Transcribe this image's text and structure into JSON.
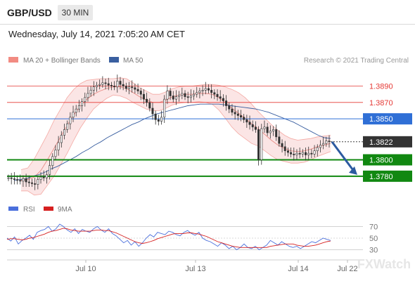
{
  "header": {
    "symbol": "GBP/USD",
    "timeframe": "30 MIN",
    "datetime": "Wednesday, July 14, 2021 7:05:20 AM CET"
  },
  "legend": {
    "bb_label": "MA 20 + Bollinger Bands",
    "ma50_label": "MA 50",
    "credit": "Research © 2021 Trading Central",
    "bb_color": "#f28b82",
    "ma50_color": "#3a5fa0"
  },
  "rsi_legend": {
    "rsi_label": "RSI",
    "ma_label": "9MA",
    "rsi_color": "#4a6fdc",
    "ma_color": "#d62020"
  },
  "chart_data": [
    {
      "type": "line",
      "title": "",
      "ylim": [
        1.3755,
        1.3905
      ],
      "current_price": 1.3822,
      "levels": [
        {
          "value": 1.389,
          "label": "1.3890",
          "kind": "resistance",
          "color": "#e53935"
        },
        {
          "value": 1.387,
          "label": "1.3870",
          "kind": "resistance",
          "color": "#e53935"
        },
        {
          "value": 1.385,
          "label": "1.3850",
          "kind": "pivot",
          "color": "#2f6fd6"
        },
        {
          "value": 1.3822,
          "label": "1.3822",
          "kind": "current",
          "color": "#222222"
        },
        {
          "value": 1.38,
          "label": "1.3800",
          "kind": "support",
          "color": "#118811"
        },
        {
          "value": 1.378,
          "label": "1.3780",
          "kind": "support",
          "color": "#118811"
        }
      ],
      "x_tick_labels": [
        "Jul 10",
        "Jul 13",
        "Jul 14",
        "Jul 22"
      ],
      "close_series": [
        1.3778,
        1.3777,
        1.3776,
        1.3775,
        1.3774,
        1.3777,
        1.3773,
        1.3772,
        1.3771,
        1.377,
        1.3776,
        1.3779,
        1.3778,
        1.3782,
        1.3793,
        1.3804,
        1.3812,
        1.3821,
        1.383,
        1.3837,
        1.3844,
        1.3852,
        1.3858,
        1.3862,
        1.3866,
        1.3871,
        1.3876,
        1.3881,
        1.3885,
        1.3889,
        1.3891,
        1.3892,
        1.3894,
        1.3893,
        1.3891,
        1.389,
        1.3889,
        1.3896,
        1.3892,
        1.389,
        1.3887,
        1.3889,
        1.3888,
        1.3886,
        1.3884,
        1.388,
        1.3874,
        1.387,
        1.3863,
        1.3856,
        1.3849,
        1.3847,
        1.3852,
        1.3874,
        1.3884,
        1.3878,
        1.3874,
        1.3877,
        1.3879,
        1.3881,
        1.3877,
        1.3876,
        1.3878,
        1.388,
        1.3882,
        1.3884,
        1.3885,
        1.3887,
        1.3885,
        1.3882,
        1.388,
        1.3877,
        1.3875,
        1.3872,
        1.3866,
        1.3862,
        1.3858,
        1.3856,
        1.3854,
        1.3852,
        1.3849,
        1.3846,
        1.3843,
        1.384,
        1.3837,
        1.38,
        1.3838,
        1.384,
        1.3833,
        1.3835,
        1.3837,
        1.3828,
        1.382,
        1.3816,
        1.3811,
        1.3809,
        1.3807,
        1.3806,
        1.3808,
        1.3807,
        1.3809,
        1.3806,
        1.3808,
        1.3807,
        1.3811,
        1.3815,
        1.3818,
        1.382,
        1.3823,
        1.3822
      ],
      "ma50_series": [
        1.3775,
        1.3776,
        1.3777,
        1.378,
        1.3782,
        1.3785,
        1.3789,
        1.3792,
        1.3796,
        1.38,
        1.3804,
        1.3809,
        1.3813,
        1.3818,
        1.3822,
        1.3827,
        1.3831,
        1.3835,
        1.3839,
        1.3843,
        1.3846,
        1.385,
        1.3853,
        1.3856,
        1.3858,
        1.386,
        1.3862,
        1.3864,
        1.3866,
        1.3867,
        1.3868,
        1.3868,
        1.3868,
        1.3868,
        1.3867,
        1.3866,
        1.3865,
        1.3864,
        1.3863,
        1.3862,
        1.386,
        1.3858,
        1.3855,
        1.3852,
        1.3849,
        1.3846,
        1.3842,
        1.3838,
        1.3834,
        1.383,
        1.3827,
        1.3826
      ],
      "bb_mid_series": [
        1.3775,
        1.3776,
        1.3779,
        1.3787,
        1.38,
        1.3814,
        1.3828,
        1.3842,
        1.3855,
        1.3866,
        1.3874,
        1.388,
        1.3884,
        1.3887,
        1.3889,
        1.3889,
        1.3887,
        1.3882,
        1.3877,
        1.3873,
        1.387,
        1.387,
        1.3873,
        1.3877,
        1.3879,
        1.388,
        1.388,
        1.3881,
        1.3881,
        1.388,
        1.3876,
        1.387,
        1.3863,
        1.3857,
        1.3851,
        1.3844,
        1.3838,
        1.3831,
        1.3824,
        1.3818,
        1.3814,
        1.3811,
        1.381,
        1.3811,
        1.3813,
        1.3816,
        1.3818,
        1.382
      ],
      "bb_upper_series": [
        1.3788,
        1.379,
        1.3801,
        1.3816,
        1.3831,
        1.3848,
        1.3862,
        1.3876,
        1.3886,
        1.3893,
        1.3897,
        1.3898,
        1.3899,
        1.3899,
        1.3899,
        1.39,
        1.3899,
        1.3894,
        1.3888,
        1.3884,
        1.388,
        1.388,
        1.3883,
        1.3887,
        1.3889,
        1.389,
        1.389,
        1.3891,
        1.3892,
        1.3892,
        1.3891,
        1.3889,
        1.3886,
        1.3882,
        1.3876,
        1.3868,
        1.3859,
        1.3851,
        1.3843,
        1.3836,
        1.383,
        1.3826,
        1.3824,
        1.3825,
        1.3826,
        1.3828,
        1.3829,
        1.383
      ],
      "bb_lower_series": [
        1.3762,
        1.3762,
        1.3757,
        1.3758,
        1.3769,
        1.378,
        1.3794,
        1.3808,
        1.3824,
        1.3839,
        1.3851,
        1.3862,
        1.3869,
        1.3875,
        1.3879,
        1.3878,
        1.3875,
        1.387,
        1.3866,
        1.3862,
        1.386,
        1.386,
        1.3863,
        1.3867,
        1.3869,
        1.387,
        1.387,
        1.3871,
        1.387,
        1.3868,
        1.3861,
        1.3851,
        1.384,
        1.3832,
        1.3826,
        1.382,
        1.3817,
        1.3811,
        1.3805,
        1.38,
        1.3798,
        1.3796,
        1.3796,
        1.3797,
        1.38,
        1.3804,
        1.3807,
        1.381
      ]
    },
    {
      "type": "line",
      "title": "",
      "ylim": [
        15,
        85
      ],
      "y_tick_labels": [
        "70",
        "50",
        "30"
      ],
      "y_ticks": [
        70,
        50,
        30
      ],
      "series": [
        {
          "name": "RSI",
          "values": [
            50,
            45,
            52,
            40,
            46,
            50,
            55,
            48,
            60,
            63,
            65,
            70,
            62,
            66,
            74,
            70,
            64,
            60,
            66,
            58,
            65,
            62,
            60,
            66,
            70,
            64,
            60,
            66,
            58,
            54,
            48,
            42,
            46,
            38,
            44,
            36,
            42,
            50,
            56,
            52,
            60,
            58,
            56,
            62,
            60,
            56,
            54,
            60,
            63,
            58,
            55,
            60,
            50,
            46,
            44,
            40,
            36,
            42,
            38,
            32,
            36,
            30,
            34,
            40,
            34,
            32,
            36,
            30,
            34,
            38,
            46,
            42,
            38,
            44,
            40,
            36,
            34,
            36,
            32,
            36,
            40,
            44,
            42,
            46,
            50,
            48,
            46
          ]
        },
        {
          "name": "9MA",
          "values": [
            48,
            49,
            49,
            48,
            47,
            48,
            50,
            51,
            53,
            55,
            57,
            60,
            62,
            63,
            65,
            67,
            66,
            64,
            63,
            62,
            62,
            62,
            62,
            63,
            64,
            64,
            63,
            63,
            61,
            59,
            56,
            53,
            50,
            47,
            44,
            42,
            41,
            42,
            44,
            46,
            49,
            51,
            53,
            55,
            57,
            58,
            58,
            58,
            59,
            59,
            58,
            57,
            55,
            53,
            50,
            47,
            44,
            42,
            40,
            38,
            36,
            35,
            34,
            34,
            34,
            34,
            34,
            34,
            34,
            34,
            36,
            37,
            38,
            39,
            40,
            40,
            40,
            38,
            37,
            36,
            36,
            37,
            38,
            40,
            42,
            44,
            45
          ]
        }
      ]
    }
  ],
  "watermark": "FXWatch",
  "colors": {
    "bull_candle": "#ffffff",
    "bear_candle": "#333333",
    "candle_outline": "#333333",
    "bb_fill": "#f8cfcf",
    "arrow": "#2c5aa0"
  }
}
